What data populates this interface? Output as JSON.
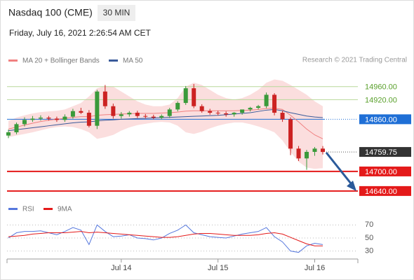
{
  "chart_data": [
    {
      "type": "candlestick",
      "title": "Nasdaq 100 (CME)",
      "timeframe": "30 MIN",
      "subtitle": "Friday, July 16, 2021 2:26:54 AM CET",
      "source": "Research © 2021 Trading Central",
      "categories": [
        null,
        null,
        null,
        null,
        null,
        null,
        null,
        null,
        null,
        null,
        null,
        null,
        null,
        null,
        "Jul 14",
        null,
        null,
        null,
        null,
        null,
        null,
        null,
        null,
        null,
        null,
        null,
        "Jul 15",
        null,
        null,
        null,
        null,
        null,
        null,
        null,
        null,
        null,
        null,
        null,
        "Jul 16",
        null
      ],
      "open": [
        14810,
        14820,
        14845,
        14858,
        14862,
        14865,
        14862,
        14858,
        14868,
        14885,
        14880,
        14840,
        14945,
        14900,
        14870,
        14875,
        14880,
        14870,
        14868,
        14865,
        14870,
        14890,
        14910,
        14955,
        14900,
        14885,
        14880,
        14878,
        14875,
        14880,
        14890,
        14895,
        14900,
        14935,
        14880,
        14860,
        14770,
        14740,
        14760,
        14770
      ],
      "high": [
        14828,
        14850,
        14866,
        14870,
        14872,
        14870,
        14868,
        14875,
        14892,
        14895,
        14888,
        14950,
        14965,
        14908,
        14882,
        14885,
        14886,
        14876,
        14874,
        14875,
        14895,
        14915,
        14962,
        14968,
        14906,
        14892,
        14886,
        14884,
        14882,
        14888,
        14898,
        14904,
        14942,
        14940,
        14886,
        14866,
        14778,
        14766,
        14775,
        14778
      ],
      "low": [
        14802,
        14814,
        14838,
        14852,
        14856,
        14856,
        14852,
        14852,
        14862,
        14876,
        14835,
        14830,
        14892,
        14862,
        14862,
        14868,
        14864,
        14862,
        14860,
        14860,
        14864,
        14884,
        14904,
        14894,
        14880,
        14874,
        14872,
        14868,
        14868,
        14874,
        14884,
        14890,
        14894,
        14872,
        14852,
        14750,
        14732,
        14705,
        14748,
        14752
      ],
      "close": [
        14820,
        14845,
        14858,
        14862,
        14865,
        14862,
        14858,
        14868,
        14885,
        14880,
        14840,
        14945,
        14900,
        14870,
        14875,
        14880,
        14870,
        14868,
        14865,
        14870,
        14890,
        14910,
        14955,
        14900,
        14885,
        14880,
        14878,
        14875,
        14880,
        14890,
        14895,
        14900,
        14935,
        14880,
        14860,
        14770,
        14740,
        14760,
        14770,
        14759.75
      ],
      "up_color": "#3a9a3a",
      "down_color": "#cc2222",
      "series": [
        {
          "name": "MA 20 + Bollinger Bands",
          "color": "#f08080",
          "values": [
            14830,
            14836,
            14842,
            14848,
            14853,
            14857,
            14860,
            14863,
            14866,
            14868,
            14868,
            14872,
            14874,
            14875,
            14876,
            14877,
            14878,
            14878,
            14878,
            14879,
            14880,
            14882,
            14885,
            14886,
            14886,
            14886,
            14886,
            14886,
            14886,
            14887,
            14888,
            14890,
            14893,
            14894,
            14890,
            14872,
            14852,
            14830,
            14812,
            14800
          ]
        },
        {
          "name": "MA 50",
          "color": "#3a5a9a",
          "values": [
            14825,
            14828,
            14831,
            14834,
            14837,
            14840,
            14843,
            14846,
            14849,
            14851,
            14852,
            14855,
            14857,
            14858,
            14860,
            14861,
            14862,
            14863,
            14864,
            14865,
            14866,
            14867,
            14868,
            14869,
            14870,
            14871,
            14872,
            14874,
            14876,
            14878,
            14880,
            14884,
            14888,
            14890,
            14886,
            14880,
            14875,
            14870,
            14867,
            14865
          ]
        }
      ],
      "band_upper": [
        14855,
        14865,
        14872,
        14878,
        14882,
        14884,
        14886,
        14890,
        14900,
        14910,
        14930,
        14955,
        14962,
        14960,
        14945,
        14930,
        14915,
        14905,
        14900,
        14900,
        14905,
        14925,
        14960,
        14972,
        14965,
        14950,
        14935,
        14925,
        14920,
        14925,
        14935,
        14950,
        14972,
        14982,
        14978,
        14965,
        14950,
        14935,
        14915,
        14900
      ],
      "band_lower": [
        14805,
        14810,
        14815,
        14820,
        14826,
        14832,
        14836,
        14838,
        14836,
        14830,
        14820,
        14800,
        14805,
        14812,
        14825,
        14835,
        14842,
        14846,
        14850,
        14852,
        14850,
        14840,
        14820,
        14815,
        14822,
        14832,
        14840,
        14846,
        14850,
        14850,
        14845,
        14838,
        14830,
        14820,
        14795,
        14760,
        14730,
        14712,
        14708,
        14710
      ],
      "levels": [
        {
          "value": 14960,
          "label": "14960.00",
          "color": "#5aa02c",
          "line": "thin",
          "filled": false
        },
        {
          "value": 14920,
          "label": "14920.00",
          "color": "#5aa02c",
          "line": "thin",
          "filled": false
        },
        {
          "value": 14860,
          "label": "14860.00",
          "color": "#1f6fd6",
          "line": "solid",
          "filled": true
        },
        {
          "value": 14759.75,
          "color": "#333333",
          "line": "dotted",
          "filled": true
        },
        {
          "value": 14700,
          "label": "14700.00",
          "color": "#e41a1a",
          "line": "thick",
          "filled": true
        },
        {
          "value": 14640,
          "label": "14640.00",
          "color": "#e41a1a",
          "line": "thick",
          "filled": true
        }
      ],
      "ylim": [
        14614,
        15011
      ]
    },
    {
      "type": "line",
      "series": [
        {
          "name": "RSI",
          "color": "#5577dd",
          "values": [
            50,
            58,
            60,
            60,
            61,
            58,
            55,
            60,
            66,
            62,
            40,
            70,
            60,
            52,
            53,
            55,
            50,
            49,
            47,
            50,
            57,
            62,
            70,
            58,
            55,
            52,
            51,
            50,
            53,
            56,
            58,
            60,
            66,
            52,
            44,
            30,
            28,
            38,
            42,
            40
          ]
        },
        {
          "name": "9MA",
          "color": "#e41a1a",
          "values": [
            52,
            53,
            54,
            56,
            57,
            58,
            58,
            58,
            59,
            60,
            58,
            59,
            58,
            57,
            56,
            55,
            54,
            53,
            52,
            51,
            51,
            52,
            54,
            56,
            57,
            57,
            56,
            55,
            54,
            54,
            54,
            55,
            57,
            58,
            56,
            51,
            46,
            41,
            38,
            38
          ]
        }
      ],
      "ylim": [
        20,
        80
      ],
      "yticks": [
        30,
        50,
        70
      ]
    }
  ]
}
